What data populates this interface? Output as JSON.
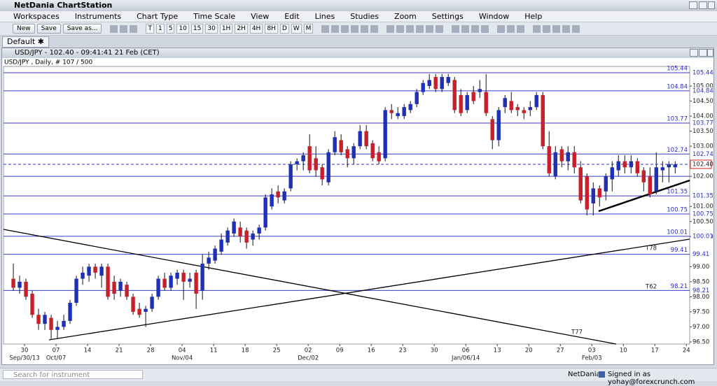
{
  "window": {
    "title": "NetDania ChartStation"
  },
  "menu": [
    "Workspaces",
    "Instruments",
    "Chart Type",
    "Time Scale",
    "View",
    "Edit",
    "Lines",
    "Studies",
    "Zoom",
    "Settings",
    "Window",
    "Help"
  ],
  "toolbar": {
    "buttons": [
      "New",
      "Save",
      "Save as..."
    ],
    "periods": [
      "T",
      "1",
      "5",
      "10",
      "15",
      "30",
      "1H",
      "2H",
      "4H",
      "8H",
      "D",
      "W",
      "M"
    ]
  },
  "tabs": [
    "Default"
  ],
  "chart_window": {
    "title": "USD/JPY - 102.40 - 09:41:41  21 Feb (CET)"
  },
  "chart_data": {
    "type": "candlestick",
    "subtitle": "USD/JPY , Daily, # 107 / 500",
    "up_color": "#1f2fb8",
    "down_color": "#c8202a",
    "level_color": "#3a3ad0",
    "xlim": [
      -1.56,
      107.3
    ],
    "ylim": [
      96.43,
      105.65
    ],
    "ohlc": [
      [
        98.6,
        99.1,
        98.2,
        98.3
      ],
      [
        98.3,
        98.7,
        98.1,
        98.5
      ],
      [
        98.5,
        98.6,
        97.9,
        98.0
      ],
      [
        98.1,
        98.2,
        97.3,
        97.4
      ],
      [
        97.4,
        97.6,
        96.9,
        97.1
      ],
      [
        97.1,
        97.5,
        96.9,
        97.4
      ],
      [
        97.3,
        97.4,
        96.6,
        96.9
      ],
      [
        96.9,
        97.2,
        96.6,
        97.0
      ],
      [
        97.0,
        97.4,
        96.9,
        97.2
      ],
      [
        97.2,
        97.9,
        97.1,
        97.8
      ],
      [
        97.8,
        98.7,
        97.7,
        98.6
      ],
      [
        98.6,
        99.0,
        98.4,
        98.8
      ],
      [
        98.7,
        99.1,
        98.5,
        99.0
      ],
      [
        99.0,
        99.1,
        98.6,
        98.8
      ],
      [
        98.7,
        99.1,
        98.3,
        99.0
      ],
      [
        99.0,
        99.1,
        97.9,
        98.0
      ],
      [
        98.5,
        98.7,
        97.9,
        98.1
      ],
      [
        98.2,
        98.6,
        98.0,
        98.5
      ],
      [
        98.4,
        98.5,
        97.9,
        98.0
      ],
      [
        98.0,
        98.1,
        97.4,
        97.5
      ],
      [
        97.6,
        97.8,
        97.3,
        97.4
      ],
      [
        97.5,
        97.7,
        97.0,
        97.6
      ],
      [
        97.6,
        98.1,
        97.5,
        98.0
      ],
      [
        98.0,
        98.7,
        97.9,
        98.6
      ],
      [
        98.6,
        98.8,
        98.2,
        98.3
      ],
      [
        98.3,
        98.8,
        98.2,
        98.7
      ],
      [
        98.6,
        98.9,
        98.4,
        98.8
      ],
      [
        98.8,
        98.9,
        97.9,
        98.5
      ],
      [
        98.5,
        98.8,
        98.3,
        98.6
      ],
      [
        98.8,
        98.9,
        97.6,
        98.1
      ],
      [
        98.2,
        99.4,
        97.9,
        99.1
      ],
      [
        99.1,
        99.5,
        98.9,
        99.3
      ],
      [
        99.2,
        99.7,
        99.1,
        99.6
      ],
      [
        99.5,
        100.1,
        99.4,
        99.9
      ],
      [
        99.8,
        100.3,
        99.7,
        100.2
      ],
      [
        100.1,
        100.6,
        100.0,
        100.5
      ],
      [
        100.3,
        100.5,
        99.8,
        100.0
      ],
      [
        100.2,
        100.3,
        99.6,
        99.8
      ],
      [
        99.9,
        100.2,
        99.7,
        100.1
      ],
      [
        100.1,
        100.4,
        99.9,
        100.3
      ],
      [
        100.3,
        101.4,
        100.2,
        101.3
      ],
      [
        101.0,
        101.6,
        100.9,
        101.4
      ],
      [
        101.5,
        101.7,
        101.1,
        101.3
      ],
      [
        101.2,
        101.6,
        101.1,
        101.5
      ],
      [
        101.6,
        102.5,
        101.5,
        102.4
      ],
      [
        102.4,
        102.6,
        102.2,
        102.5
      ],
      [
        102.5,
        102.8,
        102.2,
        102.7
      ],
      [
        103.0,
        103.4,
        102.1,
        102.2
      ],
      [
        102.6,
        103.0,
        102.0,
        102.2
      ],
      [
        102.3,
        102.4,
        101.7,
        101.9
      ],
      [
        101.8,
        102.9,
        101.7,
        102.8
      ],
      [
        102.8,
        103.5,
        102.7,
        103.3
      ],
      [
        103.2,
        103.4,
        102.7,
        102.8
      ],
      [
        102.9,
        103.0,
        102.3,
        102.6
      ],
      [
        102.6,
        103.1,
        102.4,
        103.0
      ],
      [
        103.0,
        103.7,
        102.9,
        103.5
      ],
      [
        103.5,
        103.7,
        102.9,
        103.0
      ],
      [
        103.1,
        103.2,
        102.5,
        102.6
      ],
      [
        102.8,
        103.0,
        102.4,
        102.5
      ],
      [
        102.6,
        104.3,
        102.5,
        104.2
      ],
      [
        104.2,
        104.4,
        103.9,
        104.1
      ],
      [
        104.0,
        104.3,
        103.9,
        104.1
      ],
      [
        104.0,
        104.4,
        103.9,
        104.3
      ],
      [
        104.2,
        104.5,
        104.1,
        104.4
      ],
      [
        104.4,
        104.9,
        104.3,
        104.8
      ],
      [
        104.8,
        105.2,
        104.7,
        105.1
      ],
      [
        105.0,
        105.4,
        104.9,
        105.2
      ],
      [
        105.3,
        105.4,
        104.8,
        104.9
      ],
      [
        104.9,
        105.4,
        104.8,
        105.3
      ],
      [
        105.1,
        105.4,
        105.0,
        105.3
      ],
      [
        105.2,
        105.3,
        104.1,
        104.2
      ],
      [
        104.7,
        104.9,
        104.0,
        104.1
      ],
      [
        104.2,
        104.8,
        104.1,
        104.7
      ],
      [
        104.8,
        105.0,
        104.4,
        104.5
      ],
      [
        104.8,
        105.2,
        104.6,
        104.9
      ],
      [
        104.8,
        105.4,
        104.0,
        104.1
      ],
      [
        103.9,
        104.0,
        102.9,
        103.2
      ],
      [
        103.2,
        104.3,
        103.0,
        104.2
      ],
      [
        104.3,
        104.7,
        104.1,
        104.6
      ],
      [
        104.5,
        104.8,
        104.1,
        104.2
      ],
      [
        104.3,
        104.4,
        104.0,
        104.2
      ],
      [
        104.2,
        104.3,
        103.9,
        104.1
      ],
      [
        104.2,
        104.5,
        104.0,
        104.3
      ],
      [
        104.3,
        104.8,
        104.2,
        104.7
      ],
      [
        104.7,
        104.8,
        102.9,
        103.0
      ],
      [
        103.0,
        103.5,
        102.0,
        102.1
      ],
      [
        102.0,
        103.0,
        101.9,
        102.8
      ],
      [
        102.9,
        103.0,
        102.3,
        102.5
      ],
      [
        102.5,
        103.0,
        102.2,
        102.8
      ],
      [
        102.8,
        103.0,
        102.1,
        102.3
      ],
      [
        102.3,
        102.5,
        101.1,
        101.2
      ],
      [
        102.0,
        102.1,
        100.7,
        100.9
      ],
      [
        101.1,
        101.8,
        100.7,
        101.6
      ],
      [
        101.6,
        101.7,
        101.0,
        101.3
      ],
      [
        101.5,
        102.1,
        101.2,
        102.0
      ],
      [
        101.9,
        102.5,
        101.5,
        102.3
      ],
      [
        102.2,
        102.7,
        102.0,
        102.5
      ],
      [
        102.5,
        102.7,
        102.1,
        102.3
      ],
      [
        102.3,
        102.7,
        102.1,
        102.5
      ],
      [
        102.5,
        102.6,
        102.0,
        102.1
      ],
      [
        102.2,
        102.3,
        101.5,
        101.8
      ],
      [
        102.0,
        102.3,
        101.3,
        101.4
      ],
      [
        101.5,
        102.8,
        101.4,
        102.3
      ],
      [
        102.2,
        102.5,
        101.8,
        102.3
      ],
      [
        102.3,
        102.5,
        101.8,
        102.4
      ],
      [
        102.3,
        102.5,
        102.1,
        102.4
      ]
    ],
    "yticks": [
      {
        "value": 105,
        "label": "105.00"
      },
      {
        "value": 104.5,
        "label": "104.50"
      },
      {
        "value": 104,
        "label": "104.00"
      },
      {
        "value": 103.5,
        "label": "103.50"
      },
      {
        "value": 103,
        "label": "103.00"
      },
      {
        "value": 102,
        "label": "102.00"
      },
      {
        "value": 101,
        "label": "101.00"
      },
      {
        "value": 100.5,
        "label": "100.50"
      },
      {
        "value": 100,
        "label": "100.00"
      },
      {
        "value": 99,
        "label": "99.00"
      },
      {
        "value": 98.5,
        "label": "98.50"
      },
      {
        "value": 98,
        "label": "98.00"
      },
      {
        "value": 97.5,
        "label": "97.50"
      },
      {
        "value": 97,
        "label": "97.00"
      },
      {
        "value": 96.5,
        "label": "96.50"
      }
    ],
    "xticks": [
      {
        "value": 1,
        "label": "30"
      },
      {
        "value": 6,
        "label": "07"
      },
      {
        "value": 11,
        "label": "14"
      },
      {
        "value": 16,
        "label": "21"
      },
      {
        "value": 21,
        "label": "28"
      },
      {
        "value": 26,
        "label": "04"
      },
      {
        "value": 31,
        "label": "11"
      },
      {
        "value": 36,
        "label": "18"
      },
      {
        "value": 41,
        "label": "25"
      },
      {
        "value": 46,
        "label": "02"
      },
      {
        "value": 51,
        "label": "09"
      },
      {
        "value": 56,
        "label": "16"
      },
      {
        "value": 61,
        "label": "23"
      },
      {
        "value": 66,
        "label": "30"
      },
      {
        "value": 71,
        "label": "06"
      },
      {
        "value": 76,
        "label": "13"
      },
      {
        "value": 81,
        "label": "20"
      },
      {
        "value": 86,
        "label": "27"
      },
      {
        "value": 91,
        "label": "03"
      },
      {
        "value": 96,
        "label": "10"
      },
      {
        "value": 101,
        "label": "17"
      },
      {
        "value": 106,
        "label": "24"
      }
    ],
    "xticks_major": [
      {
        "value": 1,
        "label": "Sep/30/13"
      },
      {
        "value": 6,
        "label": "Oct/07"
      },
      {
        "value": 26,
        "label": "Nov/04"
      },
      {
        "value": 46,
        "label": "Dec/02"
      },
      {
        "value": 71,
        "label": "Jan/06/14"
      },
      {
        "value": 91,
        "label": "Feb/03"
      }
    ],
    "levels": [
      105.44,
      104.84,
      103.77,
      102.74,
      {
        "value": 102,
        "label": "102.00"
      },
      101.35,
      100.75,
      100.01,
      99.41,
      98.21
    ],
    "last_price": {
      "value": 102.4,
      "label": "102.40"
    },
    "annotations": [
      "T78",
      "T62",
      "T77"
    ]
  },
  "status": {
    "search_placeholder": "Search for instrument",
    "brand": "NetDania",
    "signed_in": "Signed in as yohay@forexcrunch.com"
  }
}
